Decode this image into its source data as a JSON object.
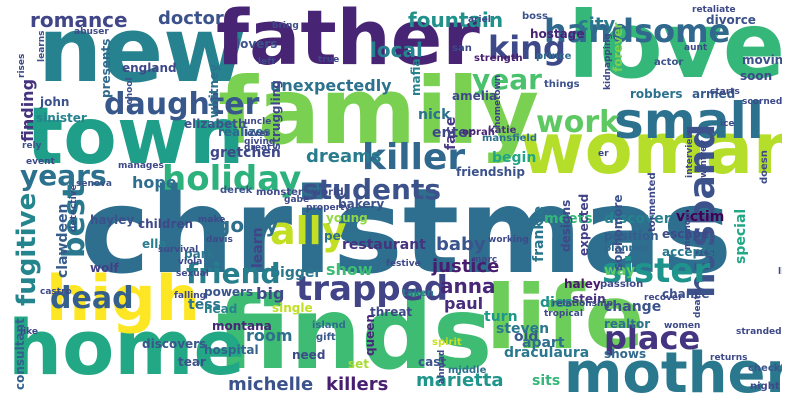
{
  "words": [
    {
      "id": "christmas",
      "text": "christmas",
      "color": "#2e6e8e"
    },
    {
      "id": "finds",
      "text": "finds",
      "color": "#3fbc73"
    },
    {
      "id": "new",
      "text": "new",
      "color": "#26828e"
    },
    {
      "id": "family",
      "text": "family",
      "color": "#7ad151"
    },
    {
      "id": "love",
      "text": "love",
      "color": "#35b779"
    },
    {
      "id": "father",
      "text": "father",
      "color": "#482475"
    },
    {
      "id": "town",
      "text": "town",
      "color": "#1f9e89"
    },
    {
      "id": "woman",
      "text": "woman",
      "color": "#b5de2b"
    },
    {
      "id": "life",
      "text": "life",
      "color": "#6ccd5a"
    },
    {
      "id": "home",
      "text": "home",
      "color": "#22a884"
    },
    {
      "id": "high",
      "text": "high",
      "color": "#fde725"
    },
    {
      "id": "mother",
      "text": "mother",
      "color": "#2a788e"
    },
    {
      "id": "small",
      "text": "small",
      "color": "#2c728e"
    },
    {
      "id": "killer",
      "text": "killer",
      "color": "#31688e"
    },
    {
      "id": "husband",
      "text": "husband",
      "color": "#3b528b"
    },
    {
      "id": "trapped",
      "text": "trapped",
      "color": "#414487"
    },
    {
      "id": "holiday",
      "text": "holiday",
      "color": "#2db27d"
    },
    {
      "id": "handsome",
      "text": "handsome",
      "color": "#31688e"
    },
    {
      "id": "daughter",
      "text": "daughter",
      "color": "#38588c"
    },
    {
      "id": "sister",
      "text": "sister",
      "color": "#1f948c"
    },
    {
      "id": "students",
      "text": "students",
      "color": "#3b528b"
    },
    {
      "id": "years",
      "text": "years",
      "color": "#2c728e"
    },
    {
      "id": "fugitive",
      "text": "fugitive",
      "color": "#25858e"
    },
    {
      "id": "ally",
      "text": "ally",
      "color": "#c2df23"
    },
    {
      "id": "friend",
      "text": "friend",
      "color": "#277f8e"
    },
    {
      "id": "king",
      "text": "king",
      "color": "#3e4989"
    },
    {
      "id": "year",
      "text": "year",
      "color": "#4ac16d"
    },
    {
      "id": "place",
      "text": "place",
      "color": "#453581"
    },
    {
      "id": "work",
      "text": "work",
      "color": "#5ec962"
    },
    {
      "id": "best",
      "text": "best",
      "color": "#2a788e"
    },
    {
      "id": "dead",
      "text": "dead",
      "color": "#355f8d"
    },
    {
      "id": "romance",
      "text": "romance",
      "color": "#404688"
    },
    {
      "id": "doctor",
      "text": "doctor",
      "color": "#3b528b"
    },
    {
      "id": "fountain",
      "text": "fountain",
      "color": "#21918c"
    },
    {
      "id": "city",
      "text": "city",
      "color": "#2a788e"
    },
    {
      "id": "local",
      "text": "local",
      "color": "#26828e"
    },
    {
      "id": "unexpectedly",
      "text": "unexpectedly",
      "color": "#2c728e"
    },
    {
      "id": "finding",
      "text": "finding",
      "color": "#46337e"
    },
    {
      "id": "hope",
      "text": "hope",
      "color": "#2e6e8e"
    },
    {
      "id": "dreams",
      "text": "dreams",
      "color": "#287c8e"
    },
    {
      "id": "gretchen",
      "text": "gretchen",
      "color": "#3f4788"
    },
    {
      "id": "goldy",
      "text": "goldy",
      "color": "#2e6f8e"
    },
    {
      "id": "anna",
      "text": "anna",
      "color": "#482878"
    },
    {
      "id": "baby",
      "text": "baby",
      "color": "#3a548c"
    },
    {
      "id": "justice",
      "text": "justice",
      "color": "#481c6e"
    },
    {
      "id": "paul",
      "text": "paul",
      "color": "#472d7b"
    },
    {
      "id": "show",
      "text": "show",
      "color": "#3dbc74"
    },
    {
      "id": "big",
      "text": "big",
      "color": "#3e4989"
    },
    {
      "id": "bigger",
      "text": "bigger",
      "color": "#2a788e"
    },
    {
      "id": "learn",
      "text": "learn",
      "color": "#414487"
    },
    {
      "id": "tess",
      "text": "tess",
      "color": "#2c728e"
    },
    {
      "id": "room",
      "text": "room",
      "color": "#2d708e"
    },
    {
      "id": "michelle",
      "text": "michelle",
      "color": "#3b528b"
    },
    {
      "id": "killers",
      "text": "killers",
      "color": "#481f70"
    },
    {
      "id": "marietta",
      "text": "marietta",
      "color": "#1f958b"
    },
    {
      "id": "draculaura",
      "text": "draculaura",
      "color": "#2a788e"
    },
    {
      "id": "sits",
      "text": "sits",
      "color": "#35b779"
    },
    {
      "id": "special",
      "text": "special",
      "color": "#22a884"
    },
    {
      "id": "victim",
      "text": "victim",
      "color": "#440154"
    },
    {
      "id": "discover",
      "text": "discover",
      "color": "#26828e"
    },
    {
      "id": "meets",
      "text": "meets",
      "color": "#32b67a"
    },
    {
      "id": "change",
      "text": "change",
      "color": "#3b528b"
    },
    {
      "id": "way",
      "text": "way",
      "color": "#5ec962"
    },
    {
      "id": "dies",
      "text": "dies",
      "color": "#21918c"
    },
    {
      "id": "begin",
      "text": "begin",
      "color": "#21a685"
    },
    {
      "id": "turn",
      "text": "turn",
      "color": "#1f968b"
    },
    {
      "id": "old",
      "text": "old",
      "color": "#38588c"
    },
    {
      "id": "apart",
      "text": "apart",
      "color": "#2e6e8e"
    },
    {
      "id": "steven",
      "text": "steven",
      "color": "#2a788e"
    },
    {
      "id": "frankie",
      "text": "frankie",
      "color": "#2a768e"
    },
    {
      "id": "face",
      "text": "face",
      "color": "#453882"
    },
    {
      "id": "enter",
      "text": "enter",
      "color": "#3f4788"
    },
    {
      "id": "nick",
      "text": "nick",
      "color": "#2c728e"
    },
    {
      "id": "clawdeen",
      "text": "clawdeen",
      "color": "#365d8d"
    },
    {
      "id": "restaurant",
      "text": "restaurant",
      "color": "#46327e"
    },
    {
      "id": "people",
      "text": "people",
      "color": "#2c728e"
    },
    {
      "id": "young",
      "text": "young",
      "color": "#8fd744"
    },
    {
      "id": "children",
      "text": "children",
      "color": "#3e4989"
    },
    {
      "id": "hayley",
      "text": "hayley",
      "color": "#3c508b"
    },
    {
      "id": "ella",
      "text": "ella",
      "color": "#287d8e"
    },
    {
      "id": "wolf",
      "text": "wolf",
      "color": "#424186"
    },
    {
      "id": "park",
      "text": "park",
      "color": "#2b758e"
    },
    {
      "id": "powers",
      "text": "powers",
      "color": "#39568c"
    },
    {
      "id": "head",
      "text": "head",
      "color": "#26828e"
    },
    {
      "id": "hospital",
      "text": "hospital",
      "color": "#33638d"
    },
    {
      "id": "montana",
      "text": "montana",
      "color": "#482677"
    },
    {
      "id": "need",
      "text": "need",
      "color": "#3e4a89"
    },
    {
      "id": "discovers",
      "text": "discovers",
      "color": "#39558c"
    },
    {
      "id": "consultant",
      "text": "consultant",
      "color": "#34608d"
    },
    {
      "id": "tear",
      "text": "tear",
      "color": "#3b528b"
    },
    {
      "id": "single",
      "text": "single",
      "color": "#c0df25"
    },
    {
      "id": "island",
      "text": "island",
      "color": "#2e6e8e"
    },
    {
      "id": "gift",
      "text": "gift",
      "color": "#38588c"
    },
    {
      "id": "queen",
      "text": "queen",
      "color": "#482979"
    },
    {
      "id": "threat",
      "text": "threat",
      "color": "#3e4989"
    },
    {
      "id": "taken",
      "text": "taken",
      "color": "#2a788e"
    },
    {
      "id": "set",
      "text": "set",
      "color": "#a8db34"
    },
    {
      "id": "cast",
      "text": "cast",
      "color": "#3b528b"
    },
    {
      "id": "spirit",
      "text": "spirit",
      "color": "#c8e020"
    },
    {
      "id": "middle",
      "text": "middle",
      "color": "#2d718e"
    },
    {
      "id": "realtor",
      "text": "realtor",
      "color": "#2c728e"
    },
    {
      "id": "shows",
      "text": "shows",
      "color": "#31688e"
    },
    {
      "id": "chance",
      "text": "chance",
      "color": "#3b528b"
    },
    {
      "id": "stein",
      "text": "stein",
      "color": "#46327e"
    },
    {
      "id": "haley",
      "text": "haley",
      "color": "#48186a"
    },
    {
      "id": "passion",
      "text": "passion",
      "color": "#3e4989"
    },
    {
      "id": "accepts",
      "text": "accepts",
      "color": "#2a788e"
    },
    {
      "id": "escape",
      "text": "escape",
      "color": "#3e4989"
    },
    {
      "id": "position",
      "text": "position",
      "color": "#355e8d"
    },
    {
      "id": "planned",
      "text": "planned",
      "color": "#31688e"
    },
    {
      "id": "designs",
      "text": "designs",
      "color": "#3e4989"
    },
    {
      "id": "expected",
      "text": "expected",
      "color": "#424086"
    },
    {
      "id": "sophomore",
      "text": "sophomore",
      "color": "#3b528b"
    },
    {
      "id": "tormented",
      "text": "tormented",
      "color": "#3e4989"
    },
    {
      "id": "armed",
      "text": "armed",
      "color": "#365c8d"
    },
    {
      "id": "robbers",
      "text": "robbers",
      "color": "#2c728e"
    },
    {
      "id": "forever",
      "text": "forever",
      "color": "#7ad151"
    },
    {
      "id": "divorce",
      "text": "divorce",
      "color": "#3b528b"
    },
    {
      "id": "retaliate",
      "text": "retaliate",
      "color": "#3e4989"
    },
    {
      "id": "boss",
      "text": "boss",
      "color": "#3b528b"
    },
    {
      "id": "hostage",
      "text": "hostage",
      "color": "#482475"
    },
    {
      "id": "prince",
      "text": "prince",
      "color": "#2e6e8e"
    },
    {
      "id": "san",
      "text": "san",
      "color": "#3e4989"
    },
    {
      "id": "strength",
      "text": "strength",
      "color": "#481f70"
    },
    {
      "id": "amelia",
      "text": "amelia",
      "color": "#3e4989"
    },
    {
      "id": "mafia",
      "text": "mafia",
      "color": "#26828e"
    },
    {
      "id": "whitney",
      "text": "whitney",
      "color": "#2c728e"
    },
    {
      "id": "realizes",
      "text": "realizes",
      "color": "#31688e"
    },
    {
      "id": "elizabeth",
      "text": "elizabeth",
      "color": "#3b528b"
    },
    {
      "id": "struggling",
      "text": "struggling",
      "color": "#3e4989"
    },
    {
      "id": "mansfield",
      "text": "mansfield",
      "color": "#2c728e"
    },
    {
      "id": "friendship",
      "text": "friendship",
      "color": "#3b528b"
    },
    {
      "id": "oprah",
      "text": "oprah",
      "color": "#482475"
    },
    {
      "id": "katie",
      "text": "katie",
      "color": "#46337e"
    },
    {
      "id": "hometown",
      "text": "hometown",
      "color": "#414487"
    },
    {
      "id": "england",
      "text": "england",
      "color": "#3e4989"
    },
    {
      "id": "presents",
      "text": "presents",
      "color": "#31688e"
    },
    {
      "id": "john",
      "text": "john",
      "color": "#3b528b"
    },
    {
      "id": "sinister",
      "text": "sinister",
      "color": "#26828e"
    },
    {
      "id": "lovers",
      "text": "lovers",
      "color": "#3b528b"
    },
    {
      "id": "bring",
      "text": "bring",
      "color": "#3e4989"
    },
    {
      "id": "ariel",
      "text": "ariel",
      "color": "#3e4989"
    },
    {
      "id": "abuser",
      "text": "abuser",
      "color": "#3e4989"
    },
    {
      "id": "rises",
      "text": "rises",
      "color": "#3e4989"
    },
    {
      "id": "learns",
      "text": "learns",
      "color": "#3b528b"
    },
    {
      "id": "left",
      "text": "left",
      "color": "#3e4989"
    },
    {
      "id": "true",
      "text": "true",
      "color": "#3e4989"
    },
    {
      "id": "uncle",
      "text": "uncle",
      "color": "#3e4989"
    },
    {
      "id": "school",
      "text": "school",
      "color": "#3b528b"
    },
    {
      "id": "things",
      "text": "things",
      "color": "#3b528b"
    },
    {
      "id": "actor",
      "text": "actor",
      "color": "#3b528b"
    },
    {
      "id": "aunt",
      "text": "aunt",
      "color": "#3e4989"
    },
    {
      "id": "starts",
      "text": "starts",
      "color": "#3e4989"
    },
    {
      "id": "moving",
      "text": "moving",
      "color": "#3b528b"
    },
    {
      "id": "soon",
      "text": "soon",
      "color": "#3e4989"
    },
    {
      "id": "scorned",
      "text": "scorned",
      "color": "#3e4989"
    },
    {
      "id": "ice",
      "text": "ice",
      "color": "#3e4989"
    },
    {
      "id": "kidnapping",
      "text": "kidnapping",
      "color": "#3e4989"
    },
    {
      "id": "er",
      "text": "er",
      "color": "#3e4989"
    },
    {
      "id": "interview",
      "text": "interview",
      "color": "#3e4989"
    },
    {
      "id": "winfrey",
      "text": "winfrey",
      "color": "#3e4989"
    },
    {
      "id": "doesn",
      "text": "doesn",
      "color": "#3e4989"
    },
    {
      "id": "rely",
      "text": "rely",
      "color": "#3b528b"
    },
    {
      "id": "event",
      "text": "event",
      "color": "#3e4989"
    },
    {
      "id": "senova",
      "text": "senova",
      "color": "#3b528b"
    },
    {
      "id": "detective",
      "text": "detective",
      "color": "#3e4989"
    },
    {
      "id": "manages",
      "text": "manages",
      "color": "#3e4989"
    },
    {
      "id": "derek",
      "text": "derek",
      "color": "#3b528b"
    },
    {
      "id": "monster",
      "text": "monster",
      "color": "#3e4989"
    },
    {
      "id": "world",
      "text": "world",
      "color": "#3e4989"
    },
    {
      "id": "bakery",
      "text": "bakery",
      "color": "#3b528b"
    },
    {
      "id": "gabe",
      "text": "gabe",
      "color": "#3e4989"
    },
    {
      "id": "property",
      "text": "property",
      "color": "#3e4989"
    },
    {
      "id": "make",
      "text": "make",
      "color": "#3e4989"
    },
    {
      "id": "survival",
      "text": "survival",
      "color": "#3e4989"
    },
    {
      "id": "davis",
      "text": "davis",
      "color": "#3e4989"
    },
    {
      "id": "viola",
      "text": "viola",
      "color": "#3e4989"
    },
    {
      "id": "sexual",
      "text": "sexual",
      "color": "#3e4989"
    },
    {
      "id": "like",
      "text": "like",
      "color": "#3e4989"
    },
    {
      "id": "castro",
      "text": "castro",
      "color": "#3e4989"
    },
    {
      "id": "falling",
      "text": "falling",
      "color": "#3e4989"
    },
    {
      "id": "great",
      "text": "great",
      "color": "#3e4989"
    },
    {
      "id": "lover",
      "text": "lover",
      "color": "#3e4989"
    },
    {
      "id": "giving",
      "text": "giving",
      "color": "#3e4989"
    },
    {
      "id": "festive",
      "text": "festive",
      "color": "#3e4989"
    },
    {
      "id": "marc",
      "text": "marc",
      "color": "#3e4989"
    },
    {
      "id": "working",
      "text": "working",
      "color": "#3e4989"
    },
    {
      "id": "relationship",
      "text": "relationship",
      "color": "#3e4989"
    },
    {
      "id": "memoir",
      "text": "memoir",
      "color": "#3e4989"
    },
    {
      "id": "tropical",
      "text": "tropical",
      "color": "#3e4989"
    },
    {
      "id": "recover",
      "text": "recover",
      "color": "#3e4989"
    },
    {
      "id": "stranded",
      "text": "stranded",
      "color": "#3e4989"
    },
    {
      "id": "returns",
      "text": "returns",
      "color": "#3e4989"
    },
    {
      "id": "check",
      "text": "check",
      "color": "#3b528b"
    },
    {
      "id": "night",
      "text": "night",
      "color": "#3e4989"
    },
    {
      "id": "women",
      "text": "women",
      "color": "#3e4989"
    },
    {
      "id": "death",
      "text": "death",
      "color": "#3e4989"
    },
    {
      "id": "ahmad",
      "text": "ahmad",
      "color": "#3e4989"
    },
    {
      "id": "ll",
      "text": "ll",
      "color": "#3e4989"
    }
  ]
}
